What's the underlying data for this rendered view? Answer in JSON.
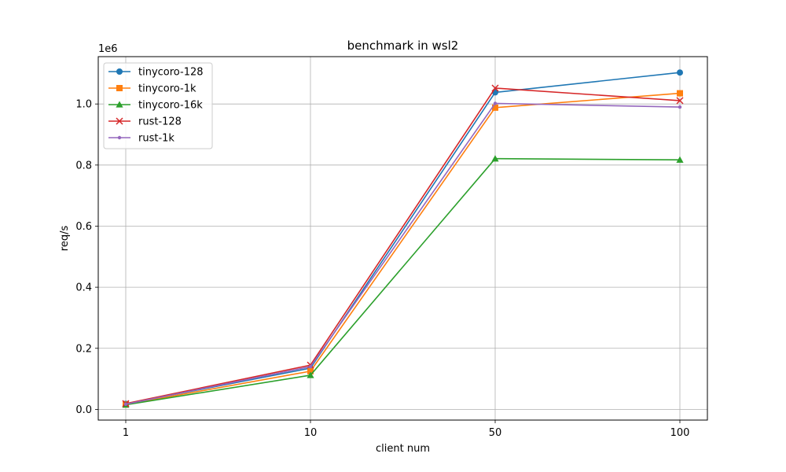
{
  "chart_data": {
    "type": "line",
    "title": "benchmark in wsl2",
    "xlabel": "client num",
    "ylabel": "req/s",
    "y_offset_text": "1e6",
    "categories": [
      "1",
      "10",
      "50",
      "100"
    ],
    "y_ticks": [
      "0.0",
      "0.2",
      "0.4",
      "0.6",
      "0.8",
      "1.0"
    ],
    "ylim": [
      -0.035,
      1.155
    ],
    "y_scale_factor": 1000000,
    "grid": true,
    "legend_position": "upper-left",
    "series": [
      {
        "name": "tinycoro-128",
        "color": "#1f77b4",
        "marker": "circle",
        "values": [
          0.018,
          0.135,
          1.038,
          1.103
        ]
      },
      {
        "name": "tinycoro-1k",
        "color": "#ff7f0e",
        "marker": "square",
        "values": [
          0.016,
          0.125,
          0.988,
          1.035
        ]
      },
      {
        "name": "tinycoro-16k",
        "color": "#2ca02c",
        "marker": "triangle",
        "values": [
          0.015,
          0.112,
          0.821,
          0.817
        ]
      },
      {
        "name": "rust-128",
        "color": "#d62728",
        "marker": "x",
        "values": [
          0.019,
          0.145,
          1.052,
          1.011
        ]
      },
      {
        "name": "rust-1k",
        "color": "#9467bd",
        "marker": "dot",
        "values": [
          0.017,
          0.14,
          1.002,
          0.99
        ]
      }
    ]
  }
}
